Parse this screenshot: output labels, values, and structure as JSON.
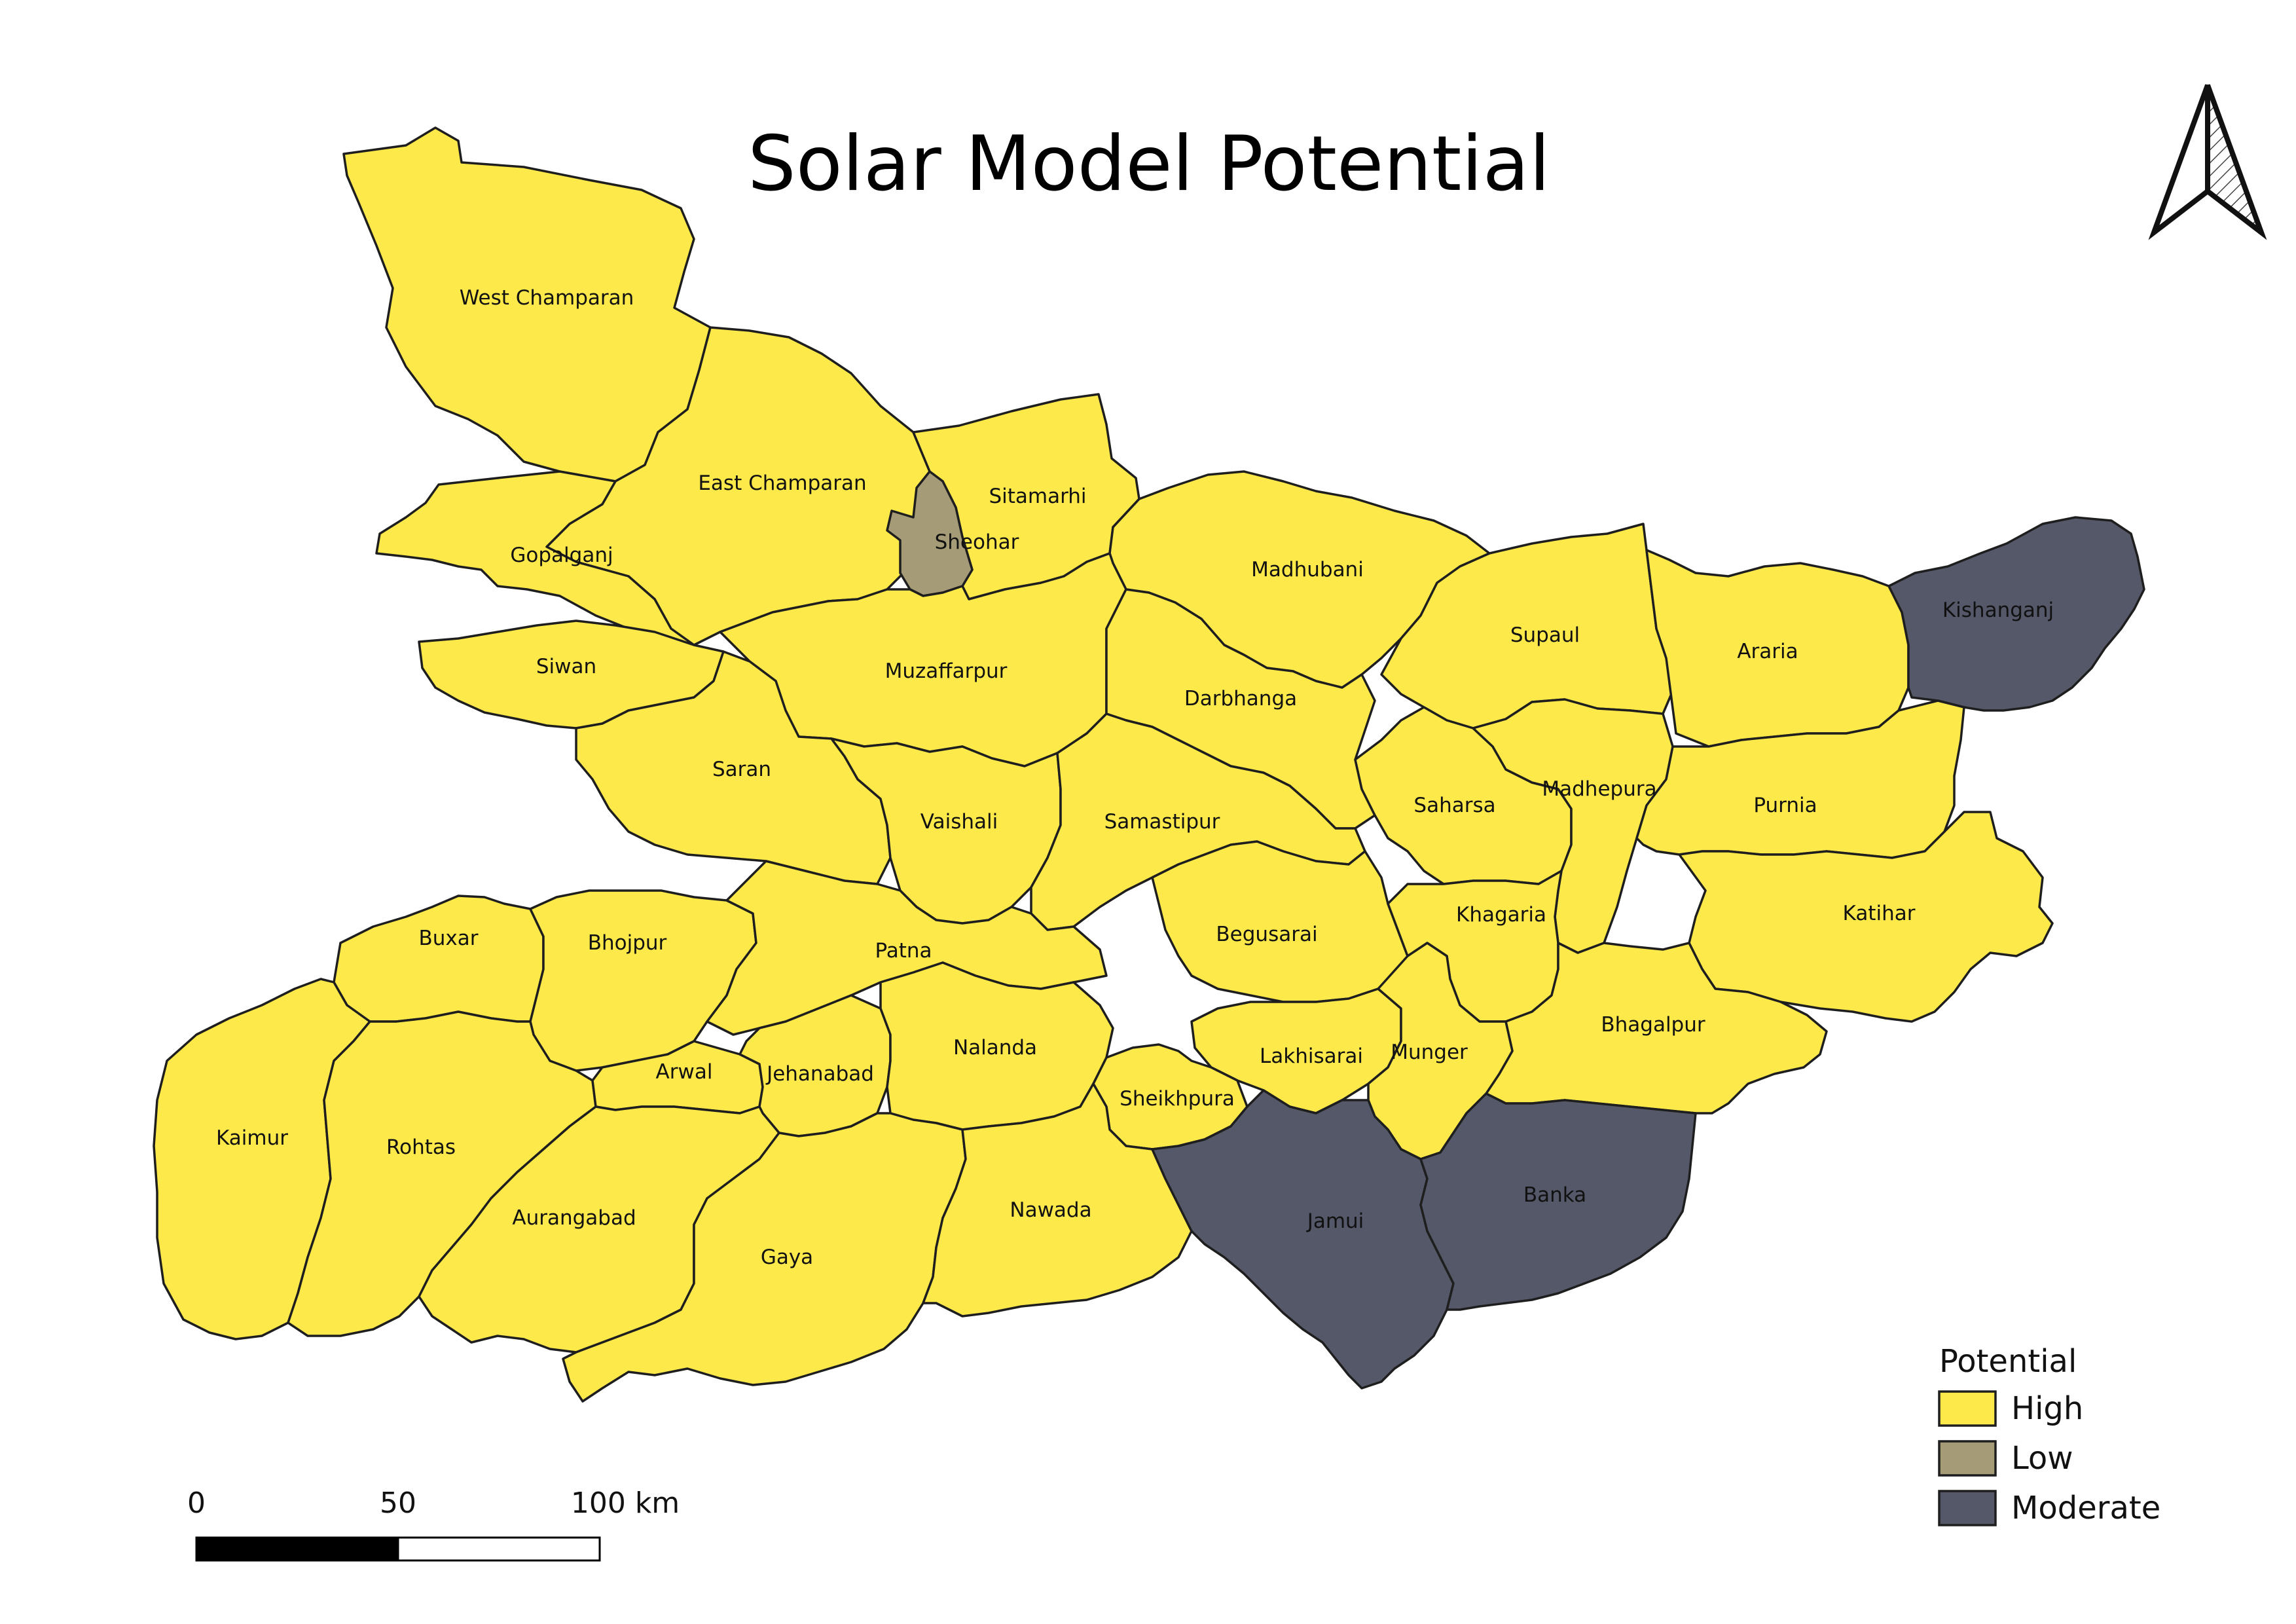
{
  "title": "Solar Model Potential",
  "legend": {
    "title": "Potential",
    "items": [
      {
        "label": "High",
        "color": "#fde94a"
      },
      {
        "label": "Low",
        "color": "#a59b77"
      },
      {
        "label": "Moderate",
        "color": "#545868"
      }
    ]
  },
  "scale_bar": {
    "labels": [
      "0",
      "50",
      "100 km"
    ]
  },
  "north_arrow": {
    "icon": "north-arrow-icon"
  },
  "districts": [
    {
      "name": "West Champaran",
      "potential": "High"
    },
    {
      "name": "East Champaran",
      "potential": "High"
    },
    {
      "name": "Sitamarhi",
      "potential": "High"
    },
    {
      "name": "Sheohar",
      "potential": "Low"
    },
    {
      "name": "Gopalganj",
      "potential": "High"
    },
    {
      "name": "Madhubani",
      "potential": "High"
    },
    {
      "name": "Siwan",
      "potential": "High"
    },
    {
      "name": "Muzaffarpur",
      "potential": "High"
    },
    {
      "name": "Darbhanga",
      "potential": "High"
    },
    {
      "name": "Supaul",
      "potential": "High"
    },
    {
      "name": "Araria",
      "potential": "High"
    },
    {
      "name": "Kishanganj",
      "potential": "Moderate"
    },
    {
      "name": "Saran",
      "potential": "High"
    },
    {
      "name": "Vaishali",
      "potential": "High"
    },
    {
      "name": "Samastipur",
      "potential": "High"
    },
    {
      "name": "Saharsa",
      "potential": "High"
    },
    {
      "name": "Madhepura",
      "potential": "High"
    },
    {
      "name": "Purnia",
      "potential": "High"
    },
    {
      "name": "Katihar",
      "potential": "High"
    },
    {
      "name": "Buxar",
      "potential": "High"
    },
    {
      "name": "Bhojpur",
      "potential": "High"
    },
    {
      "name": "Patna",
      "potential": "High"
    },
    {
      "name": "Begusarai",
      "potential": "High"
    },
    {
      "name": "Khagaria",
      "potential": "High"
    },
    {
      "name": "Bhagalpur",
      "potential": "High"
    },
    {
      "name": "Kaimur",
      "potential": "High"
    },
    {
      "name": "Rohtas",
      "potential": "High"
    },
    {
      "name": "Arwal",
      "potential": "High"
    },
    {
      "name": "Jehanabad",
      "potential": "High"
    },
    {
      "name": "Nalanda",
      "potential": "High"
    },
    {
      "name": "Lakhisarai",
      "potential": "High"
    },
    {
      "name": "Munger",
      "potential": "High"
    },
    {
      "name": "Sheikhpura",
      "potential": "High"
    },
    {
      "name": "Aurangabad",
      "potential": "High"
    },
    {
      "name": "Gaya",
      "potential": "High"
    },
    {
      "name": "Nawada",
      "potential": "High"
    },
    {
      "name": "Jamui",
      "potential": "Moderate"
    },
    {
      "name": "Banka",
      "potential": "Moderate"
    }
  ]
}
